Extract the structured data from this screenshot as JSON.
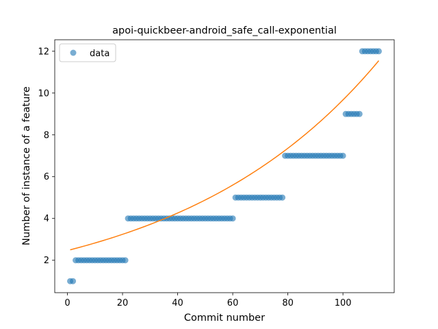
{
  "chart_data": {
    "type": "scatter",
    "title": "apoi-quickbeer-android_safe_call-exponential",
    "xlabel": "Commit number",
    "ylabel": "Number of instance of a feature",
    "xlim": [
      -4.6,
      118.6
    ],
    "ylim": [
      0.45,
      12.55
    ],
    "xticks": [
      0,
      20,
      40,
      60,
      80,
      100
    ],
    "yticks": [
      2,
      4,
      6,
      8,
      10,
      12
    ],
    "grid": false,
    "legend_position": "upper-left",
    "series": [
      {
        "name": "data",
        "kind": "points",
        "color": "#1f77b4",
        "groups": [
          {
            "x_start": 1,
            "x_end": 2,
            "y": 1
          },
          {
            "x_start": 3,
            "x_end": 21,
            "y": 2
          },
          {
            "x_start": 22,
            "x_end": 60,
            "y": 4
          },
          {
            "x_start": 61,
            "x_end": 78,
            "y": 5
          },
          {
            "x_start": 79,
            "x_end": 100,
            "y": 7
          },
          {
            "x_start": 101,
            "x_end": 106,
            "y": 9
          },
          {
            "x_start": 107,
            "x_end": 113,
            "y": 12
          }
        ]
      },
      {
        "kind": "exponential-fit",
        "color": "#ff7f0e",
        "x_range": [
          1,
          113
        ],
        "y_start": 2.5,
        "y_end": 11.55
      }
    ]
  }
}
